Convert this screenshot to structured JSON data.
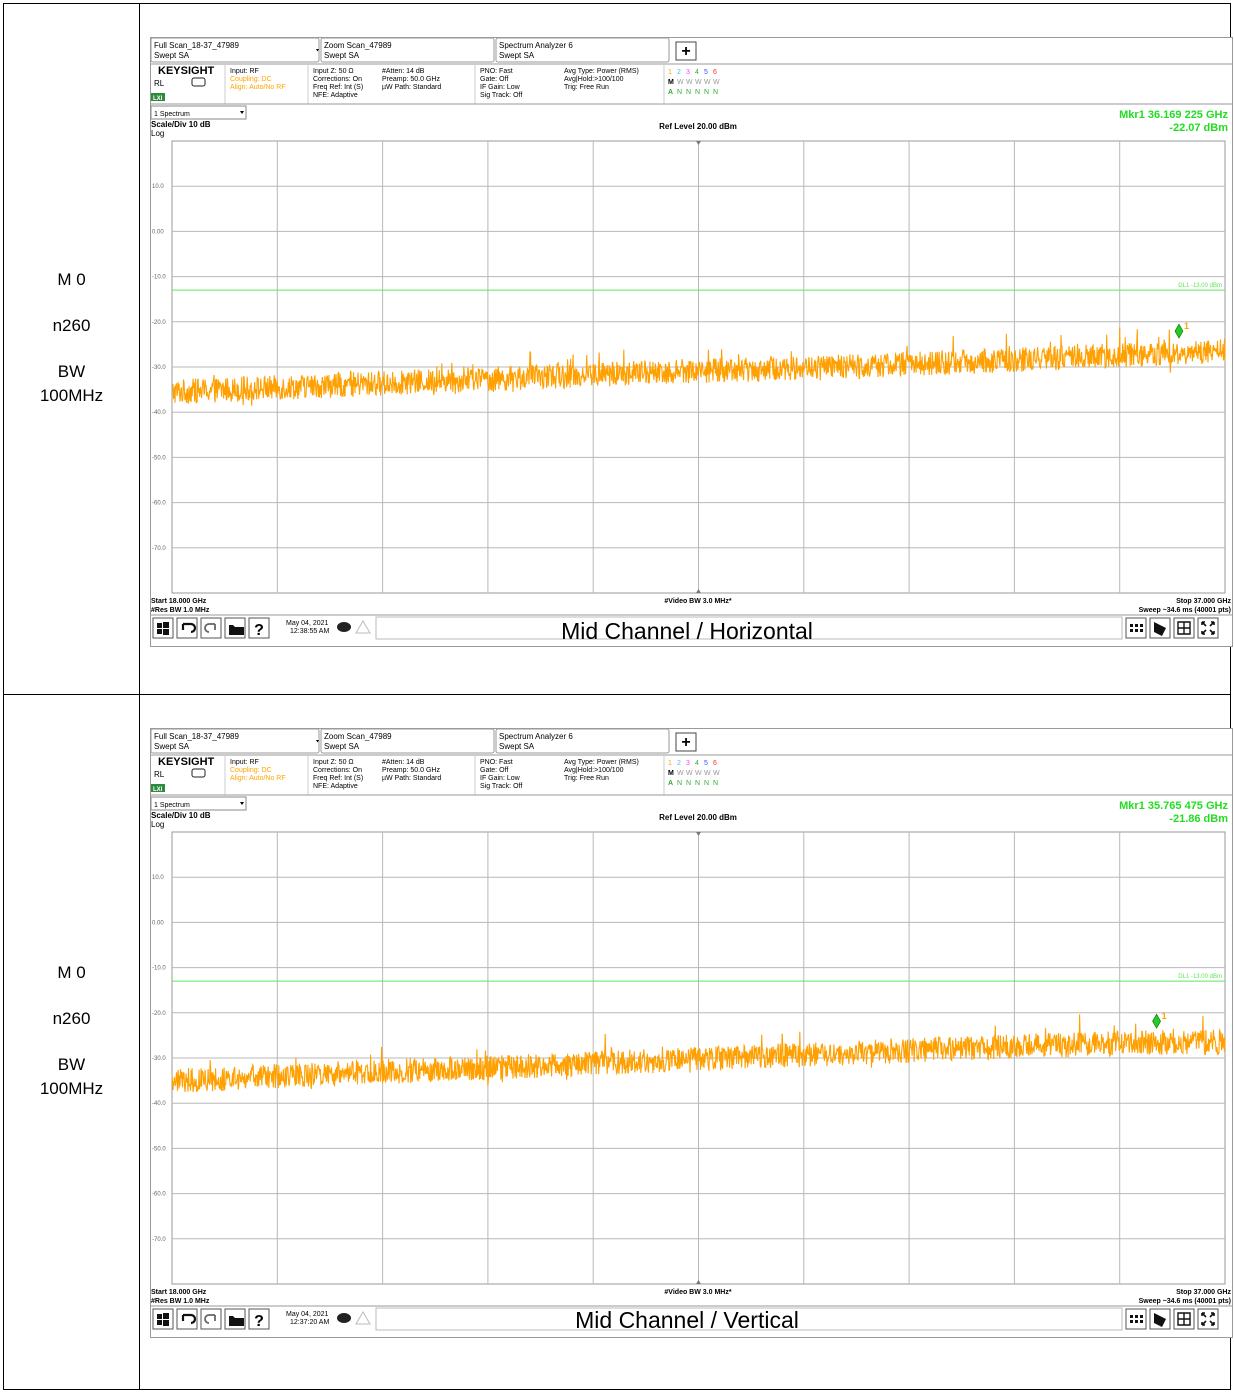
{
  "rows": [
    {
      "label": {
        "line1": "M 0",
        "line2": "n260",
        "line3": "BW",
        "line4": "100MHz"
      },
      "caption": "Mid Channel / Horizontal",
      "analyzer": {
        "tabs": [
          {
            "title": "Full Scan_18-37_47989",
            "sub": "Swept SA"
          },
          {
            "title": "Zoom Scan_47989",
            "sub": "Swept SA"
          },
          {
            "title": "Spectrum Analyzer 6",
            "sub": "Swept SA"
          }
        ],
        "add_tab": "+",
        "brand": "KEYSIGHT",
        "rl": "RL",
        "lxi": "LXI",
        "info_col1": [
          "Input: RF",
          "Coupling: DC",
          "Align: Auto/No RF"
        ],
        "info_col2": [
          "Input Z: 50 Ω",
          "Corrections: On",
          "Freq Ref: Int (S)",
          "NFE: Adaptive"
        ],
        "info_col3": [
          "#Atten: 14 dB",
          "Preamp: 50.0 GHz",
          "µW Path: Standard"
        ],
        "info_col4": [
          "PNO: Fast",
          "Gate: Off",
          "IF Gain: Low",
          "Sig Track: Off"
        ],
        "info_col5": [
          "Avg Type: Power (RMS)",
          "Avg|Hold:>100/100",
          "Trig: Free Run"
        ],
        "trace_nums": [
          "1",
          "2",
          "3",
          "4",
          "5",
          "6"
        ],
        "trace_types": [
          "M",
          "W",
          "W",
          "W",
          "W",
          "W"
        ],
        "trace_dets": [
          "A",
          "N",
          "N",
          "N",
          "N",
          "N"
        ],
        "view_select": "1 Spectrum",
        "marker_freq": "Mkr1  36.169 225 GHz",
        "marker_amp": "-22.07 dBm",
        "scale": "Scale/Div 10 dB",
        "log": "Log",
        "ref_level": "Ref Level 20.00 dBm",
        "y_ticks": [
          "10.0",
          "0.00",
          "-10.0",
          "-20.0",
          "-30.0",
          "-40.0",
          "-50.0",
          "-60.0",
          "-70.0"
        ],
        "display_line": "DL1 -13.00 dBm",
        "start": "Start 18.000 GHz",
        "res_bw": "#Res BW 1.0 MHz",
        "video_bw": "#Video BW 3.0 MHz*",
        "stop": "Stop 37.000 GHz",
        "sweep": "Sweep ~34.6 ms (40001 pts)",
        "date": "May 04, 2021",
        "time": "12:38:55 AM",
        "marker_label": "1"
      },
      "chart_data": {
        "type": "line",
        "x_range_ghz": [
          18.0,
          37.0
        ],
        "y_range_dbm": [
          -80,
          20
        ],
        "display_line_dbm": -13.0,
        "marker": {
          "x_ghz": 36.169225,
          "y_dbm": -22.07
        },
        "series": [
          {
            "x": [
              18.0,
              21.0,
              24.0,
              27.0,
              30.0,
              33.0,
              36.0,
              37.0
            ],
            "y": [
              -35.5,
              -34.0,
              -32.5,
              -31.0,
              -30.0,
              -28.5,
              -27.0,
              -26.5
            ]
          }
        ]
      }
    },
    {
      "label": {
        "line1": "M 0",
        "line2": "n260",
        "line3": "BW",
        "line4": "100MHz"
      },
      "caption": "Mid Channel / Vertical",
      "analyzer": {
        "tabs": [
          {
            "title": "Full Scan_18-37_47989",
            "sub": "Swept SA"
          },
          {
            "title": "Zoom Scan_47989",
            "sub": "Swept SA"
          },
          {
            "title": "Spectrum Analyzer 6",
            "sub": "Swept SA"
          }
        ],
        "add_tab": "+",
        "brand": "KEYSIGHT",
        "rl": "RL",
        "lxi": "LXI",
        "info_col1": [
          "Input: RF",
          "Coupling: DC",
          "Align: Auto/No RF"
        ],
        "info_col2": [
          "Input Z: 50 Ω",
          "Corrections: On",
          "Freq Ref: Int (S)",
          "NFE: Adaptive"
        ],
        "info_col3": [
          "#Atten: 14 dB",
          "Preamp: 50.0 GHz",
          "µW Path: Standard"
        ],
        "info_col4": [
          "PNO: Fast",
          "Gate: Off",
          "IF Gain: Low",
          "Sig Track: Off"
        ],
        "info_col5": [
          "Avg Type: Power (RMS)",
          "Avg|Hold:>100/100",
          "Trig: Free Run"
        ],
        "trace_nums": [
          "1",
          "2",
          "3",
          "4",
          "5",
          "6"
        ],
        "trace_types": [
          "M",
          "W",
          "W",
          "W",
          "W",
          "W"
        ],
        "trace_dets": [
          "A",
          "N",
          "N",
          "N",
          "N",
          "N"
        ],
        "view_select": "1 Spectrum",
        "marker_freq": "Mkr1  35.765 475 GHz",
        "marker_amp": "-21.86 dBm",
        "scale": "Scale/Div 10 dB",
        "log": "Log",
        "ref_level": "Ref Level 20.00 dBm",
        "y_ticks": [
          "10.0",
          "0.00",
          "-10.0",
          "-20.0",
          "-30.0",
          "-40.0",
          "-50.0",
          "-60.0",
          "-70.0"
        ],
        "display_line": "DL1 -13.00 dBm",
        "start": "Start 18.000 GHz",
        "res_bw": "#Res BW 1.0 MHz",
        "video_bw": "#Video BW 3.0 MHz*",
        "stop": "Stop 37.000 GHz",
        "sweep": "Sweep ~34.6 ms (40001 pts)",
        "date": "May 04, 2021",
        "time": "12:37:20 AM",
        "marker_label": "1"
      },
      "chart_data": {
        "type": "line",
        "x_range_ghz": [
          18.0,
          37.0
        ],
        "y_range_dbm": [
          -80,
          20
        ],
        "display_line_dbm": -13.0,
        "marker": {
          "x_ghz": 35.765475,
          "y_dbm": -21.86
        },
        "series": [
          {
            "x": [
              18.0,
              21.0,
              24.0,
              27.0,
              30.0,
              33.0,
              36.0,
              37.0
            ],
            "y": [
              -35.0,
              -33.5,
              -32.0,
              -30.5,
              -29.0,
              -27.5,
              -26.5,
              -26.5
            ]
          }
        ]
      }
    }
  ],
  "colors": {
    "trace": "#ffa000",
    "display_line": "#5ce65c",
    "marker": "#22cc22",
    "marker_readout": "#22dd22",
    "grid": "#b8b8b8",
    "panel_border": "#9a9a9a",
    "info_orange": "#ffa500",
    "lxi_green": "#2e8b3e"
  },
  "icons": [
    "windows-icon",
    "undo-icon",
    "redo-icon",
    "folder-icon",
    "help-icon",
    "chat-icon",
    "warning-icon",
    "markers-icon",
    "peak-icon",
    "grid-icon",
    "fullscreen-icon"
  ]
}
